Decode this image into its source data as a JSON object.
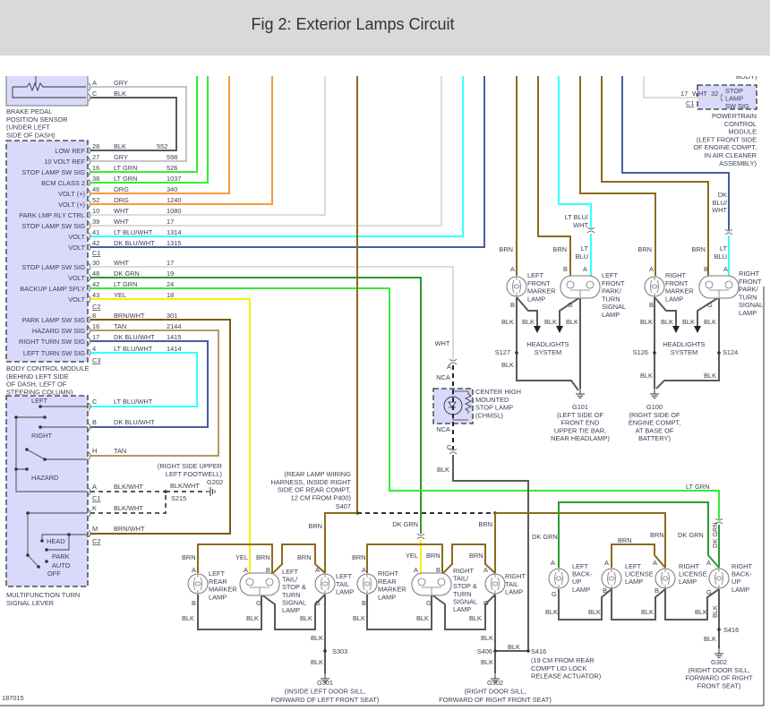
{
  "title": "Fig 2: Exterior Lamps Circuit",
  "figure_number": "187015",
  "colors": {
    "header_bg": "#d9d9d9",
    "module_fill": "#d9d9fb",
    "wires": {
      "BRN": "#8c6a1c",
      "BRN/WHT": "#7d5c12",
      "TAN": "#b39b62",
      "LT GRN": "#33ee33",
      "DK GRN": "#2e9a2e",
      "ORG": "#f79a3a",
      "WHT": "#dcdcdc",
      "GRY": "#c4c4c4",
      "BLK": "#5a5a5a",
      "BLK/WHT": "#5a5a5a",
      "LT BLU": "#33ffff",
      "LT BLU/WHT": "#33ffff",
      "DK BLU/WHT": "#4a5ca0",
      "YEL": "#f5f000"
    }
  },
  "brake_sensor": {
    "pins": [
      {
        "pin": "A",
        "wire": "GRY"
      },
      {
        "pin": "C",
        "wire": "BLK"
      }
    ],
    "label": [
      "BRAKE PEDAL",
      "POSITION SENSOR",
      "(UNDER LEFT",
      "SIDE OF DASH)"
    ]
  },
  "bcm": {
    "pins": [
      {
        "name": "LOW REF",
        "pin": "28",
        "wire": "BLK",
        "circuit": "552"
      },
      {
        "name": "10 VOLT REF",
        "pin": "27",
        "wire": "GRY",
        "circuit": "598"
      },
      {
        "name": "STOP LAMP SW SIG",
        "pin": "16",
        "wire": "LT GRN",
        "circuit": "526"
      },
      {
        "name": "BCM CLASS 2",
        "pin": "38",
        "wire": "LT GRN",
        "circuit": "1037"
      },
      {
        "name": "VOLT (+)",
        "pin": "46",
        "wire": "ORG",
        "circuit": "340"
      },
      {
        "name": "VOLT (+)",
        "pin": "52",
        "wire": "ORG",
        "circuit": "1240"
      },
      {
        "name": "PARK LMP RLY CTRL",
        "pin": "10",
        "wire": "WHT",
        "circuit": "1080"
      },
      {
        "name": "STOP LAMP SW SIG",
        "pin": "39",
        "wire": "WHT",
        "circuit": "17"
      },
      {
        "name": "VOLT",
        "pin": "41",
        "wire": "LT BLU/WHT",
        "circuit": "1314"
      },
      {
        "name": "VOLT",
        "pin": "42",
        "wire": "DK BLU/WHT",
        "circuit": "1315"
      },
      {
        "name": "STOP LAMP SW SIG",
        "pin": "30",
        "wire": "WHT",
        "circuit": "17"
      },
      {
        "name": "VOLT",
        "pin": "48",
        "wire": "DK GRN",
        "circuit": "19"
      },
      {
        "name": "BACKUP LAMP SPLY",
        "pin": "42",
        "wire": "LT GRN",
        "circuit": "24"
      },
      {
        "name": "VOLT",
        "pin": "43",
        "wire": "YEL",
        "circuit": "18"
      },
      {
        "name": "PARK LAMP SW SIG",
        "pin": "8",
        "wire": "BRN/WHT",
        "circuit": "301"
      },
      {
        "name": "HAZARD SW SIG",
        "pin": "16",
        "wire": "TAN",
        "circuit": "2144"
      },
      {
        "name": "RIGHT TURN SW SIG",
        "pin": "17",
        "wire": "DK BLU/WHT",
        "circuit": "1415"
      },
      {
        "name": "LEFT TURN SW SIG",
        "pin": "4",
        "wire": "LT BLU/WHT",
        "circuit": "1414"
      }
    ],
    "connectors": [
      "C1",
      "C2",
      "C3"
    ],
    "label": [
      "BODY CONTROL MODULE",
      "(BEHIND LEFT SIDE",
      "OF DASH, LEFT OF",
      "STEERING COLUMN)"
    ]
  },
  "pcm": {
    "body_fragment": "BODY)",
    "box": [
      "STOP",
      "LAMP",
      "SW SIG"
    ],
    "circuit": "17",
    "wire": "WHT",
    "pin": "32",
    "connector": "C1",
    "label": [
      "POWERTRAIN",
      "CONTROL",
      "MODULE",
      "(LEFT FRONT SIDE",
      "OF ENGINE COMPT,",
      "IN AIR CLEANER",
      "ASSEMBLY)"
    ]
  },
  "lever": {
    "positions": [
      "LEFT",
      "RIGHT",
      "HAZARD",
      "HEAD",
      "PARK",
      "AUTO",
      "OFF"
    ],
    "pins": [
      {
        "pin": "C",
        "wire": "LT BLU/WHT"
      },
      {
        "pin": "B",
        "wire": "DK BLU/WHT"
      },
      {
        "pin": "H",
        "wire": "TAN"
      },
      {
        "pin": "A",
        "wire": "BLK/WHT"
      },
      {
        "pin": "K",
        "wire": "BLK/WHT"
      },
      {
        "pin": "M",
        "wire": "BRN/WHT"
      }
    ],
    "connectors": [
      "C1",
      "C2"
    ],
    "label": [
      "MULTIFUNCTION TURN",
      "SIGNAL LEVER"
    ]
  },
  "s215": {
    "wire": "BLK/WHT",
    "splice": "S215",
    "ground": "G202",
    "note": [
      "(RIGHT SIDE UPPER",
      "LEFT FOOTWELL)"
    ]
  },
  "front": {
    "wire_labels": {
      "lt_blu_wht": [
        "LT BLU/",
        "WHT"
      ],
      "dk_blu_wht": [
        "DK",
        "BLU/",
        "WHT"
      ],
      "brn": "BRN",
      "lt_blu": [
        "LT",
        "BLU"
      ],
      "blk": "BLK"
    },
    "left_marker": {
      "name": [
        "LEFT",
        "FRONT",
        "MARKER",
        "LAMP"
      ],
      "pins": [
        "A",
        "B"
      ]
    },
    "left_park": {
      "name": [
        "LEFT",
        "FRONT",
        "PARK/",
        "TURN",
        "SIGNAL",
        "LAMP"
      ],
      "pins": [
        "B",
        "A",
        "G"
      ]
    },
    "right_marker": {
      "name": [
        "RIGHT",
        "FRONT",
        "MARKER",
        "LAMP"
      ],
      "pins": [
        "A",
        "B"
      ]
    },
    "right_park": {
      "name": [
        "RIGHT",
        "FRONT",
        "PARK/",
        "TURN",
        "SIGNAL",
        "LAMP"
      ],
      "pins": [
        "B",
        "A",
        "G"
      ]
    },
    "headlights": [
      "HEADLIGHTS",
      "SYSTEM"
    ],
    "splices": [
      "S127",
      "S126",
      "S124"
    ],
    "g101": [
      "G101",
      "(LEFT SIDE OF",
      "FRONT END",
      "UPPER TIE BAR,",
      "NEAR HEADLAMP)"
    ],
    "g100": [
      "G100",
      "(RIGHT SIDE OF",
      "ENGINE COMPT,",
      "AT BASE OF",
      "BATTERY)"
    ]
  },
  "chmsl": {
    "wire_in": "WHT",
    "pin_in": "A",
    "nca": "NCA",
    "pin_out": "C",
    "wire_out": "BLK",
    "name": [
      "CENTER HIGH",
      "MOUNTED",
      "STOP LAMP",
      "(CHMSL)"
    ]
  },
  "rear": {
    "harness_note": [
      "(REAR LAMP WIRING",
      "HARNESS, INSIDE RIGHT",
      "SIDE OF REAR COMPT,",
      "12 CM FROM P400)"
    ],
    "s407": "S407",
    "wire_labels": {
      "brn": "BRN",
      "yel": "YEL",
      "dk_grn": "DK GRN",
      "lt_grn": "LT GRN",
      "blk": "BLK"
    },
    "pin_letters": {
      "a": "A",
      "b": "B",
      "g": "G"
    },
    "left_rear_marker": [
      "LEFT",
      "REAR",
      "MARKER",
      "LAMP"
    ],
    "left_tail_stop": [
      "LEFT",
      "TAIL/",
      "STOP &",
      "TURN",
      "SIGNAL",
      "LAMP"
    ],
    "left_tail": [
      "LEFT",
      "TAIL",
      "LAMP"
    ],
    "right_rear_marker": [
      "RIGHT",
      "REAR",
      "MARKER",
      "LAMP"
    ],
    "right_tail_stop": [
      "RIGHT",
      "TAIL/",
      "STOP &",
      "TURN",
      "SIGNAL",
      "LAMP"
    ],
    "right_tail": [
      "RIGHT",
      "TAIL",
      "LAMP"
    ],
    "left_backup": [
      "LEFT",
      "BACK-",
      "UP",
      "LAMP"
    ],
    "left_license": [
      "LEFT",
      "LICENSE",
      "LAMP"
    ],
    "right_license": [
      "RIGHT",
      "LICENSE",
      "LAMP"
    ],
    "right_backup": [
      "RIGHT",
      "BACK-",
      "UP",
      "LAMP"
    ],
    "s303": "S303",
    "s406": "S406",
    "s416": "S416",
    "s416_note": [
      "(19 CM FROM REAR",
      "COMPT LID LOCK",
      "RELEASE ACTUATOR)"
    ],
    "g301": [
      "G301",
      "(INSIDE LEFT DOOR SILL,",
      "FORWARD OF LEFT FRONT SEAT)"
    ],
    "g302": [
      "G302",
      "(RIGHT DOOR SILL,",
      "FORWARD OF RIGHT FRONT SEAT)"
    ],
    "g302_right": [
      "G302",
      "(RIGHT DOOR SILL,",
      "FORWARD OF RIGHT",
      "FRONT SEAT)"
    ]
  }
}
